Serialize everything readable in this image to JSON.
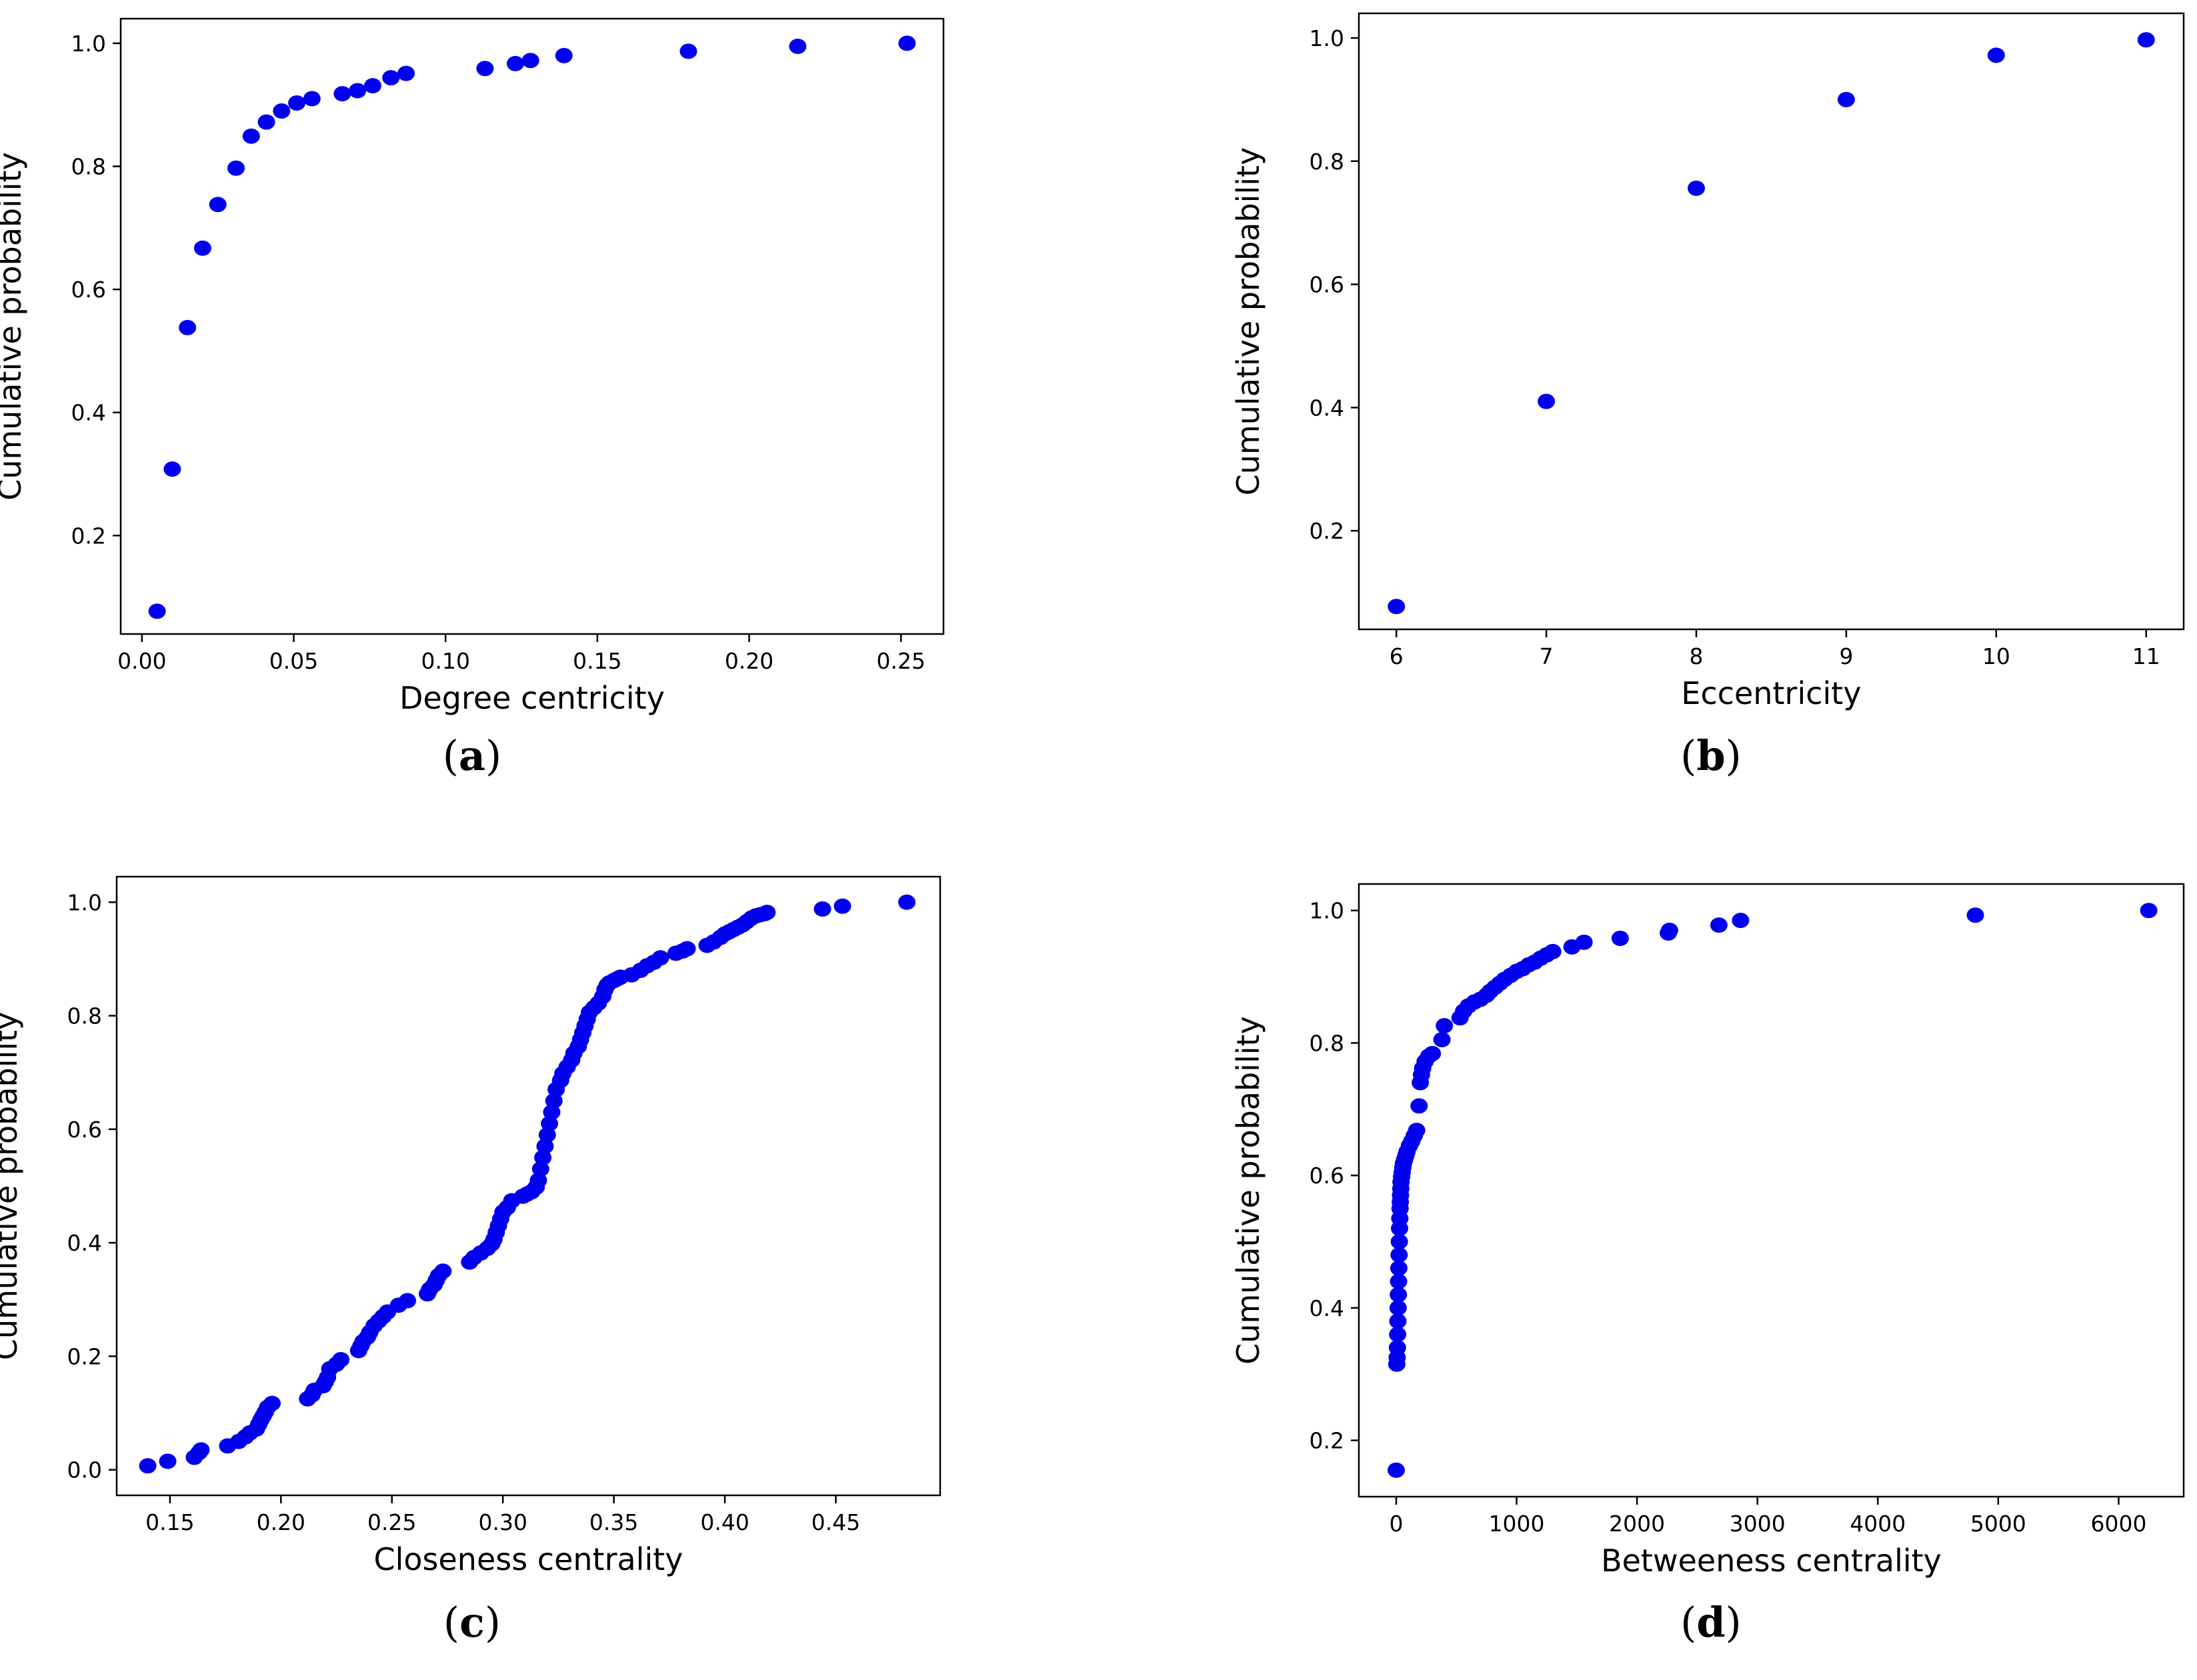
{
  "figure": {
    "point_color": "#0000ee",
    "axis_color": "#000000"
  },
  "chart_data": [
    {
      "type": "scatter",
      "panel": "(a)",
      "title": "",
      "xlabel": "Degree centricity",
      "ylabel": "Cumulative probability",
      "xlim": [
        -0.007,
        0.264
      ],
      "ylim": [
        0.04,
        1.04
      ],
      "xticks": [
        0.0,
        0.05,
        0.1,
        0.15,
        0.2,
        0.25
      ],
      "xtick_labels": [
        "0.00",
        "0.05",
        "0.10",
        "0.15",
        "0.20",
        "0.25"
      ],
      "yticks": [
        0.2,
        0.4,
        0.6,
        0.8,
        1.0
      ],
      "ytick_labels": [
        "0.2",
        "0.4",
        "0.6",
        "0.8",
        "1.0"
      ],
      "x": [
        0.005,
        0.01,
        0.015,
        0.02,
        0.025,
        0.031,
        0.036,
        0.041,
        0.046,
        0.051,
        0.056,
        0.066,
        0.071,
        0.076,
        0.082,
        0.087,
        0.113,
        0.123,
        0.128,
        0.139,
        0.18,
        0.216,
        0.252
      ],
      "y": [
        0.077,
        0.308,
        0.538,
        0.667,
        0.738,
        0.797,
        0.849,
        0.872,
        0.89,
        0.903,
        0.91,
        0.918,
        0.923,
        0.931,
        0.944,
        0.951,
        0.959,
        0.967,
        0.972,
        0.98,
        0.987,
        0.995,
        1.0
      ]
    },
    {
      "type": "scatter",
      "panel": "(b)",
      "title": "",
      "xlabel": "Eccentricity",
      "ylabel": "Cumulative probability",
      "xlim": [
        5.75,
        11.25
      ],
      "ylim": [
        0.04,
        1.04
      ],
      "xticks": [
        6,
        7,
        8,
        9,
        10,
        11
      ],
      "xtick_labels": [
        "6",
        "7",
        "8",
        "9",
        "10",
        "11"
      ],
      "yticks": [
        0.2,
        0.4,
        0.6,
        0.8,
        1.0
      ],
      "ytick_labels": [
        "0.2",
        "0.4",
        "0.6",
        "0.8",
        "1.0"
      ],
      "x": [
        6,
        7,
        8,
        9,
        10,
        11
      ],
      "y": [
        0.077,
        0.41,
        0.756,
        0.9,
        0.972,
        0.997
      ]
    },
    {
      "type": "scatter",
      "panel": "(c)",
      "title": "",
      "xlabel": "Closeness centrality",
      "ylabel": "Cumulative probability",
      "xlim": [
        0.126,
        0.497
      ],
      "ylim": [
        -0.045,
        1.045
      ],
      "xticks": [
        0.15,
        0.2,
        0.25,
        0.3,
        0.35,
        0.4,
        0.45
      ],
      "xtick_labels": [
        "0.15",
        "0.20",
        "0.25",
        "0.30",
        "0.35",
        "0.40",
        "0.45"
      ],
      "yticks": [
        0.0,
        0.2,
        0.4,
        0.6,
        0.8,
        1.0
      ],
      "ytick_labels": [
        "0.0",
        "0.2",
        "0.4",
        "0.6",
        "0.8",
        "1.0"
      ],
      "x": [
        0.14,
        0.149,
        0.161,
        0.163,
        0.164,
        0.176,
        0.181,
        0.184,
        0.186,
        0.189,
        0.19,
        0.191,
        0.192,
        0.193,
        0.194,
        0.196,
        0.212,
        0.214,
        0.215,
        0.219,
        0.22,
        0.221,
        0.222,
        0.225,
        0.227,
        0.235,
        0.236,
        0.237,
        0.239,
        0.24,
        0.242,
        0.244,
        0.246,
        0.248,
        0.253,
        0.257,
        0.266,
        0.267,
        0.269,
        0.27,
        0.271,
        0.273,
        0.285,
        0.287,
        0.29,
        0.293,
        0.295,
        0.296,
        0.297,
        0.298,
        0.299,
        0.3,
        0.302,
        0.304,
        0.309,
        0.311,
        0.313,
        0.315,
        0.316,
        0.317,
        0.318,
        0.319,
        0.32,
        0.321,
        0.322,
        0.323,
        0.324,
        0.326,
        0.327,
        0.329,
        0.331,
        0.332,
        0.334,
        0.335,
        0.336,
        0.337,
        0.338,
        0.339,
        0.341,
        0.343,
        0.345,
        0.346,
        0.347,
        0.348,
        0.35,
        0.351,
        0.352,
        0.353,
        0.358,
        0.362,
        0.365,
        0.368,
        0.371,
        0.378,
        0.381,
        0.383,
        0.392,
        0.395,
        0.398,
        0.4,
        0.402,
        0.404,
        0.406,
        0.408,
        0.41,
        0.412,
        0.414,
        0.416,
        0.418,
        0.419,
        0.444,
        0.453,
        0.482
      ],
      "y": [
        0.007,
        0.015,
        0.022,
        0.03,
        0.035,
        0.042,
        0.05,
        0.058,
        0.065,
        0.072,
        0.08,
        0.088,
        0.095,
        0.102,
        0.11,
        0.117,
        0.125,
        0.132,
        0.14,
        0.148,
        0.155,
        0.163,
        0.178,
        0.186,
        0.194,
        0.21,
        0.218,
        0.226,
        0.234,
        0.242,
        0.254,
        0.262,
        0.27,
        0.278,
        0.29,
        0.298,
        0.31,
        0.318,
        0.326,
        0.334,
        0.342,
        0.35,
        0.366,
        0.374,
        0.382,
        0.39,
        0.398,
        0.406,
        0.418,
        0.43,
        0.442,
        0.454,
        0.462,
        0.474,
        0.482,
        0.486,
        0.49,
        0.498,
        0.51,
        0.53,
        0.55,
        0.57,
        0.59,
        0.61,
        0.63,
        0.65,
        0.67,
        0.686,
        0.698,
        0.71,
        0.722,
        0.734,
        0.746,
        0.758,
        0.77,
        0.782,
        0.794,
        0.806,
        0.814,
        0.822,
        0.834,
        0.846,
        0.854,
        0.858,
        0.862,
        0.864,
        0.866,
        0.868,
        0.872,
        0.88,
        0.888,
        0.894,
        0.902,
        0.91,
        0.914,
        0.918,
        0.924,
        0.93,
        0.938,
        0.944,
        0.948,
        0.952,
        0.956,
        0.96,
        0.966,
        0.972,
        0.976,
        0.978,
        0.98,
        0.982,
        0.988,
        0.993,
        1.0
      ]
    },
    {
      "type": "scatter",
      "panel": "(d)",
      "title": "",
      "xlabel": "Betweeness centrality",
      "ylabel": "Cumulative probability",
      "xlim": [
        -310,
        6540
      ],
      "ylim": [
        0.115,
        1.04
      ],
      "xticks": [
        0,
        1000,
        2000,
        3000,
        4000,
        5000,
        6000
      ],
      "xtick_labels": [
        "0",
        "1000",
        "2000",
        "3000",
        "4000",
        "5000",
        "6000"
      ],
      "yticks": [
        0.2,
        0.4,
        0.6,
        0.8,
        1.0
      ],
      "ytick_labels": [
        "0.2",
        "0.4",
        "0.6",
        "0.8",
        "1.0"
      ],
      "x": [
        0,
        5,
        8,
        10,
        12,
        14,
        16,
        18,
        20,
        22,
        24,
        26,
        28,
        30,
        32,
        34,
        36,
        38,
        40,
        45,
        50,
        55,
        60,
        70,
        80,
        90,
        110,
        130,
        150,
        170,
        190,
        200,
        210,
        220,
        240,
        270,
        300,
        380,
        400,
        530,
        560,
        600,
        650,
        700,
        750,
        780,
        820,
        860,
        900,
        950,
        1000,
        1050,
        1100,
        1150,
        1200,
        1250,
        1300,
        1460,
        1560,
        1860,
        2260,
        2270,
        2680,
        2860,
        4810,
        6250
      ],
      "y": [
        0.155,
        0.315,
        0.325,
        0.34,
        0.36,
        0.38,
        0.4,
        0.42,
        0.44,
        0.46,
        0.48,
        0.5,
        0.52,
        0.535,
        0.55,
        0.56,
        0.57,
        0.58,
        0.59,
        0.598,
        0.605,
        0.612,
        0.618,
        0.624,
        0.63,
        0.636,
        0.645,
        0.652,
        0.66,
        0.668,
        0.705,
        0.74,
        0.752,
        0.762,
        0.772,
        0.78,
        0.784,
        0.805,
        0.826,
        0.838,
        0.848,
        0.856,
        0.862,
        0.866,
        0.872,
        0.878,
        0.884,
        0.89,
        0.896,
        0.902,
        0.908,
        0.912,
        0.918,
        0.922,
        0.928,
        0.933,
        0.938,
        0.945,
        0.952,
        0.958,
        0.966,
        0.97,
        0.978,
        0.985,
        0.993,
        1.0
      ]
    }
  ]
}
